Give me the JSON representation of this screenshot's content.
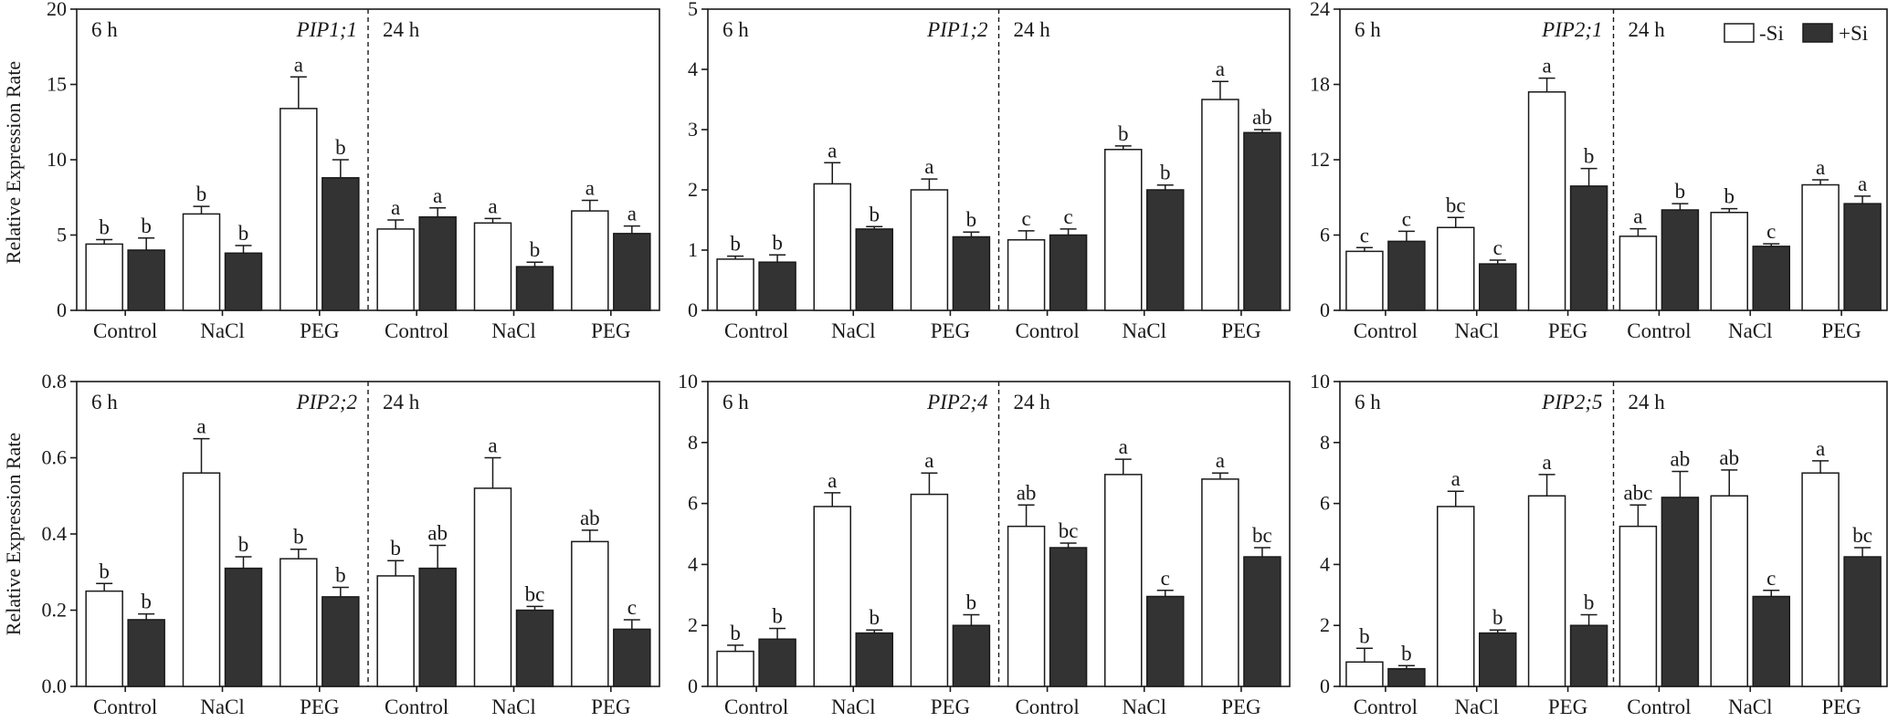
{
  "y_axis_label": "Relative Expression Rate",
  "legend": {
    "minus_si": "-Si",
    "plus_si": "+Si"
  },
  "colors": {
    "minus_si": "#ffffff",
    "plus_si": "#333333",
    "axis": "#1a1a1a"
  },
  "chart_data": [
    {
      "type": "bar",
      "gene": "PIP1;1",
      "ylim": [
        0,
        20
      ],
      "yticks": [
        0,
        5,
        10,
        15,
        20
      ],
      "categories": [
        "Control",
        "NaCl",
        "PEG"
      ],
      "periods": [
        {
          "label": "6 h",
          "minus": [
            4.4,
            6.4,
            13.4
          ],
          "minus_err": [
            0.3,
            0.5,
            2.1
          ],
          "plus": [
            4.0,
            3.8,
            8.8
          ],
          "plus_err": [
            0.8,
            0.5,
            1.2
          ],
          "minus_sig": [
            "b",
            "b",
            "a"
          ],
          "plus_sig": [
            "b",
            "b",
            "b"
          ]
        },
        {
          "label": "24 h",
          "minus": [
            5.4,
            5.8,
            6.6
          ],
          "minus_err": [
            0.6,
            0.3,
            0.7
          ],
          "plus": [
            6.2,
            2.9,
            5.1
          ],
          "plus_err": [
            0.6,
            0.3,
            0.5
          ],
          "minus_sig": [
            "a",
            "a",
            "a"
          ],
          "plus_sig": [
            "a",
            "b",
            "a"
          ]
        }
      ]
    },
    {
      "type": "bar",
      "gene": "PIP1;2",
      "ylim": [
        0,
        5
      ],
      "yticks": [
        0,
        1,
        2,
        3,
        4,
        5
      ],
      "categories": [
        "Control",
        "NaCl",
        "PEG"
      ],
      "periods": [
        {
          "label": "6 h",
          "minus": [
            0.85,
            2.1,
            2.0
          ],
          "minus_err": [
            0.05,
            0.35,
            0.18
          ],
          "plus": [
            0.8,
            1.35,
            1.22
          ],
          "plus_err": [
            0.12,
            0.04,
            0.08
          ],
          "minus_sig": [
            "b",
            "a",
            "a"
          ],
          "plus_sig": [
            "b",
            "b",
            "b"
          ]
        },
        {
          "label": "24 h",
          "minus": [
            1.17,
            2.67,
            3.5
          ],
          "minus_err": [
            0.15,
            0.06,
            0.3
          ],
          "plus": [
            1.25,
            2.0,
            2.95
          ],
          "plus_err": [
            0.1,
            0.08,
            0.05
          ],
          "minus_sig": [
            "c",
            "b",
            "a"
          ],
          "plus_sig": [
            "c",
            "b",
            "ab"
          ]
        }
      ]
    },
    {
      "type": "bar",
      "gene": "PIP2;1",
      "ylim": [
        0,
        24
      ],
      "yticks": [
        0,
        6,
        12,
        18,
        24
      ],
      "categories": [
        "Control",
        "NaCl",
        "PEG"
      ],
      "periods": [
        {
          "label": "6 h",
          "minus": [
            4.7,
            6.6,
            17.4
          ],
          "minus_err": [
            0.3,
            0.8,
            1.1
          ],
          "plus": [
            5.5,
            3.7,
            9.9
          ],
          "plus_err": [
            0.8,
            0.3,
            1.4
          ],
          "minus_sig": [
            "c",
            "bc",
            "a"
          ],
          "plus_sig": [
            "c",
            "c",
            "b"
          ]
        },
        {
          "label": "24 h",
          "minus": [
            5.9,
            7.8,
            10.0
          ],
          "minus_err": [
            0.6,
            0.3,
            0.4
          ],
          "plus": [
            8.0,
            5.1,
            8.5
          ],
          "plus_err": [
            0.5,
            0.2,
            0.6
          ],
          "minus_sig": [
            "a",
            "b",
            "a"
          ],
          "plus_sig": [
            "b",
            "c",
            "a"
          ]
        }
      ]
    },
    {
      "type": "bar",
      "gene": "PIP2;2",
      "ylim": [
        0,
        0.8
      ],
      "yticks": [
        0.0,
        0.2,
        0.4,
        0.6,
        0.8
      ],
      "categories": [
        "Control",
        "NaCl",
        "PEG"
      ],
      "periods": [
        {
          "label": "6 h",
          "minus": [
            0.25,
            0.56,
            0.335
          ],
          "minus_err": [
            0.02,
            0.09,
            0.025
          ],
          "plus": [
            0.175,
            0.31,
            0.235
          ],
          "plus_err": [
            0.015,
            0.03,
            0.025
          ],
          "minus_sig": [
            "b",
            "a",
            "b"
          ],
          "plus_sig": [
            "b",
            "b",
            "b"
          ]
        },
        {
          "label": "24 h",
          "minus": [
            0.29,
            0.52,
            0.38
          ],
          "minus_err": [
            0.04,
            0.08,
            0.03
          ],
          "plus": [
            0.31,
            0.2,
            0.15
          ],
          "plus_err": [
            0.06,
            0.01,
            0.025
          ],
          "minus_sig": [
            "b",
            "a",
            "ab"
          ],
          "plus_sig": [
            "ab",
            "bc",
            "c"
          ]
        }
      ]
    },
    {
      "type": "bar",
      "gene": "PIP2;4",
      "ylim": [
        0,
        10
      ],
      "yticks": [
        0,
        2,
        4,
        6,
        8,
        10
      ],
      "categories": [
        "Control",
        "NaCl",
        "PEG"
      ],
      "periods": [
        {
          "label": "6 h",
          "minus": [
            1.15,
            5.9,
            6.3
          ],
          "minus_err": [
            0.2,
            0.45,
            0.7
          ],
          "plus": [
            1.55,
            1.75,
            2.0
          ],
          "plus_err": [
            0.35,
            0.1,
            0.35
          ],
          "minus_sig": [
            "b",
            "a",
            "a"
          ],
          "plus_sig": [
            "b",
            "b",
            "b"
          ]
        },
        {
          "label": "24 h",
          "minus": [
            5.25,
            6.95,
            6.8
          ],
          "minus_err": [
            0.7,
            0.5,
            0.2
          ],
          "plus": [
            4.55,
            2.95,
            4.25
          ],
          "plus_err": [
            0.15,
            0.2,
            0.3
          ],
          "minus_sig": [
            "ab",
            "a",
            "a"
          ],
          "plus_sig": [
            "bc",
            "c",
            "bc"
          ]
        }
      ]
    },
    {
      "type": "bar",
      "gene": "PIP2;5",
      "ylim": [
        0,
        10
      ],
      "yticks": [
        0,
        2,
        4,
        6,
        8,
        10
      ],
      "categories": [
        "Control",
        "NaCl",
        "PEG"
      ],
      "periods": [
        {
          "label": "6 h",
          "minus": [
            0.8,
            5.9,
            6.25
          ],
          "minus_err": [
            0.45,
            0.5,
            0.7
          ],
          "plus": [
            0.58,
            1.75,
            2.0
          ],
          "plus_err": [
            0.1,
            0.1,
            0.35
          ],
          "minus_sig": [
            "b",
            "a",
            "a"
          ],
          "plus_sig": [
            "b",
            "b",
            "b"
          ]
        },
        {
          "label": "24 h",
          "minus": [
            5.25,
            6.25,
            7.0
          ],
          "minus_err": [
            0.7,
            0.85,
            0.4
          ],
          "plus": [
            6.2,
            2.95,
            4.25
          ],
          "plus_err": [
            0.85,
            0.2,
            0.3
          ],
          "minus_sig": [
            "abc",
            "ab",
            "a"
          ],
          "plus_sig": [
            "ab",
            "c",
            "bc"
          ]
        }
      ]
    }
  ]
}
